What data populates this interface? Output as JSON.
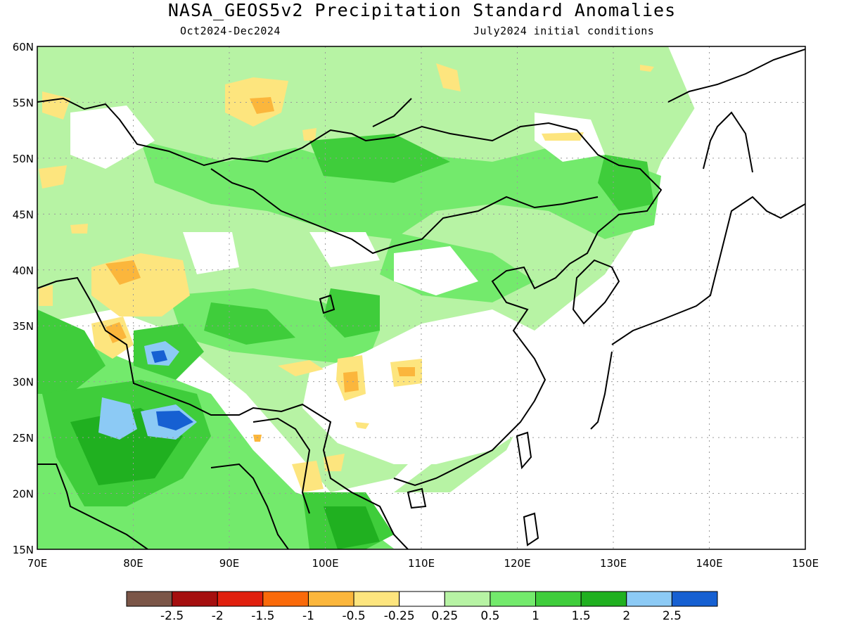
{
  "title": "NASA_GEOS5v2 Precipitation Standard Anomalies",
  "subtitle_left": "Oct2024-Dec2024",
  "subtitle_right": "July2024 initial conditions",
  "map": {
    "lon_range": [
      70,
      150
    ],
    "lat_range": [
      15,
      60
    ],
    "lat_ticks": [
      "60N",
      "55N",
      "50N",
      "45N",
      "40N",
      "35N",
      "30N",
      "25N",
      "20N",
      "15N"
    ],
    "lon_ticks": [
      "70E",
      "80E",
      "90E",
      "100E",
      "110E",
      "120E",
      "130E",
      "140E",
      "150E"
    ]
  },
  "colorbar": {
    "colors": [
      "#7b5648",
      "#a50f0f",
      "#e0200e",
      "#fa6a0a",
      "#fbb63c",
      "#fde57e",
      "#ffffff",
      "#b7f3a4",
      "#73ea6c",
      "#3fcd3b",
      "#20b020",
      "#8ccaf5",
      "#1660d2"
    ],
    "labels": [
      "-2.5",
      "-2",
      "-1.5",
      "-1",
      "-0.5",
      "-0.25",
      "0.25",
      "0.5",
      "1",
      "1.5",
      "2",
      "2.5"
    ]
  }
}
